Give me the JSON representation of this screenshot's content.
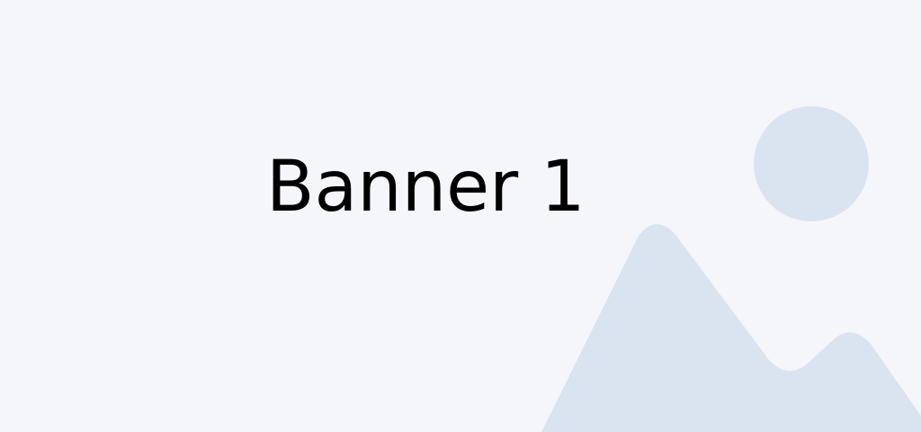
{
  "banner": {
    "title": "Banner 1",
    "background_color": "#f5f6fa",
    "illustration_color": "#dae4f0",
    "illustration_icon": "image-placeholder-icon"
  }
}
